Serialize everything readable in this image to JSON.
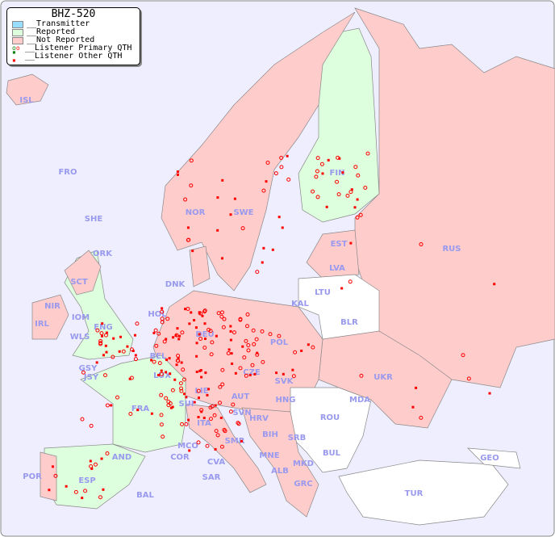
{
  "title": "BHZ-520",
  "legend": [
    {
      "label": "__Transmitter",
      "color": "#99ddff"
    },
    {
      "label": "__Reported",
      "color": "#ddffdd"
    },
    {
      "label": "__Not Reported",
      "color": "#ffcccc"
    },
    {
      "label": "__Listener Primary QTH",
      "color": "#ff0000"
    },
    {
      "label": "__Listener Other QTH",
      "color": "#ff0000"
    }
  ],
  "colors": {
    "sea": "#eeeeff",
    "reported": "#ddffdd",
    "not_reported": "#ffcccc",
    "no_data": "#ffffff",
    "label": "#9999ee",
    "dot": "#ff0000"
  },
  "countries": {
    "reported": [
      "FIN",
      "ENG",
      "FRA",
      "ESP",
      "POR?"
    ],
    "labels": [
      "ISL",
      "FRO",
      "SHE",
      "ORK",
      "NOR",
      "SWE",
      "FIN",
      "EST",
      "RUS",
      "LVA",
      "LTU",
      "DNK",
      "SCT",
      "NIR",
      "IRL",
      "IOM",
      "WLS",
      "ENG",
      "HOL",
      "KAL",
      "BLR",
      "POL",
      "DEU",
      "BEL",
      "LUX",
      "GSY",
      "JSY",
      "CZE",
      "UKR",
      "SVK",
      "LIE",
      "AUT",
      "HNG",
      "MDA",
      "FRA",
      "SUI",
      "SVN",
      "HRV",
      "ITA",
      "ROU",
      "BIH",
      "SRB",
      "MCO",
      "COR",
      "CVA",
      "SMR",
      "MNE",
      "AND",
      "BUL",
      "GEO",
      "ALB",
      "MKD",
      "POR",
      "ESP",
      "SAR",
      "GRC",
      "BAL",
      "TUR"
    ]
  }
}
